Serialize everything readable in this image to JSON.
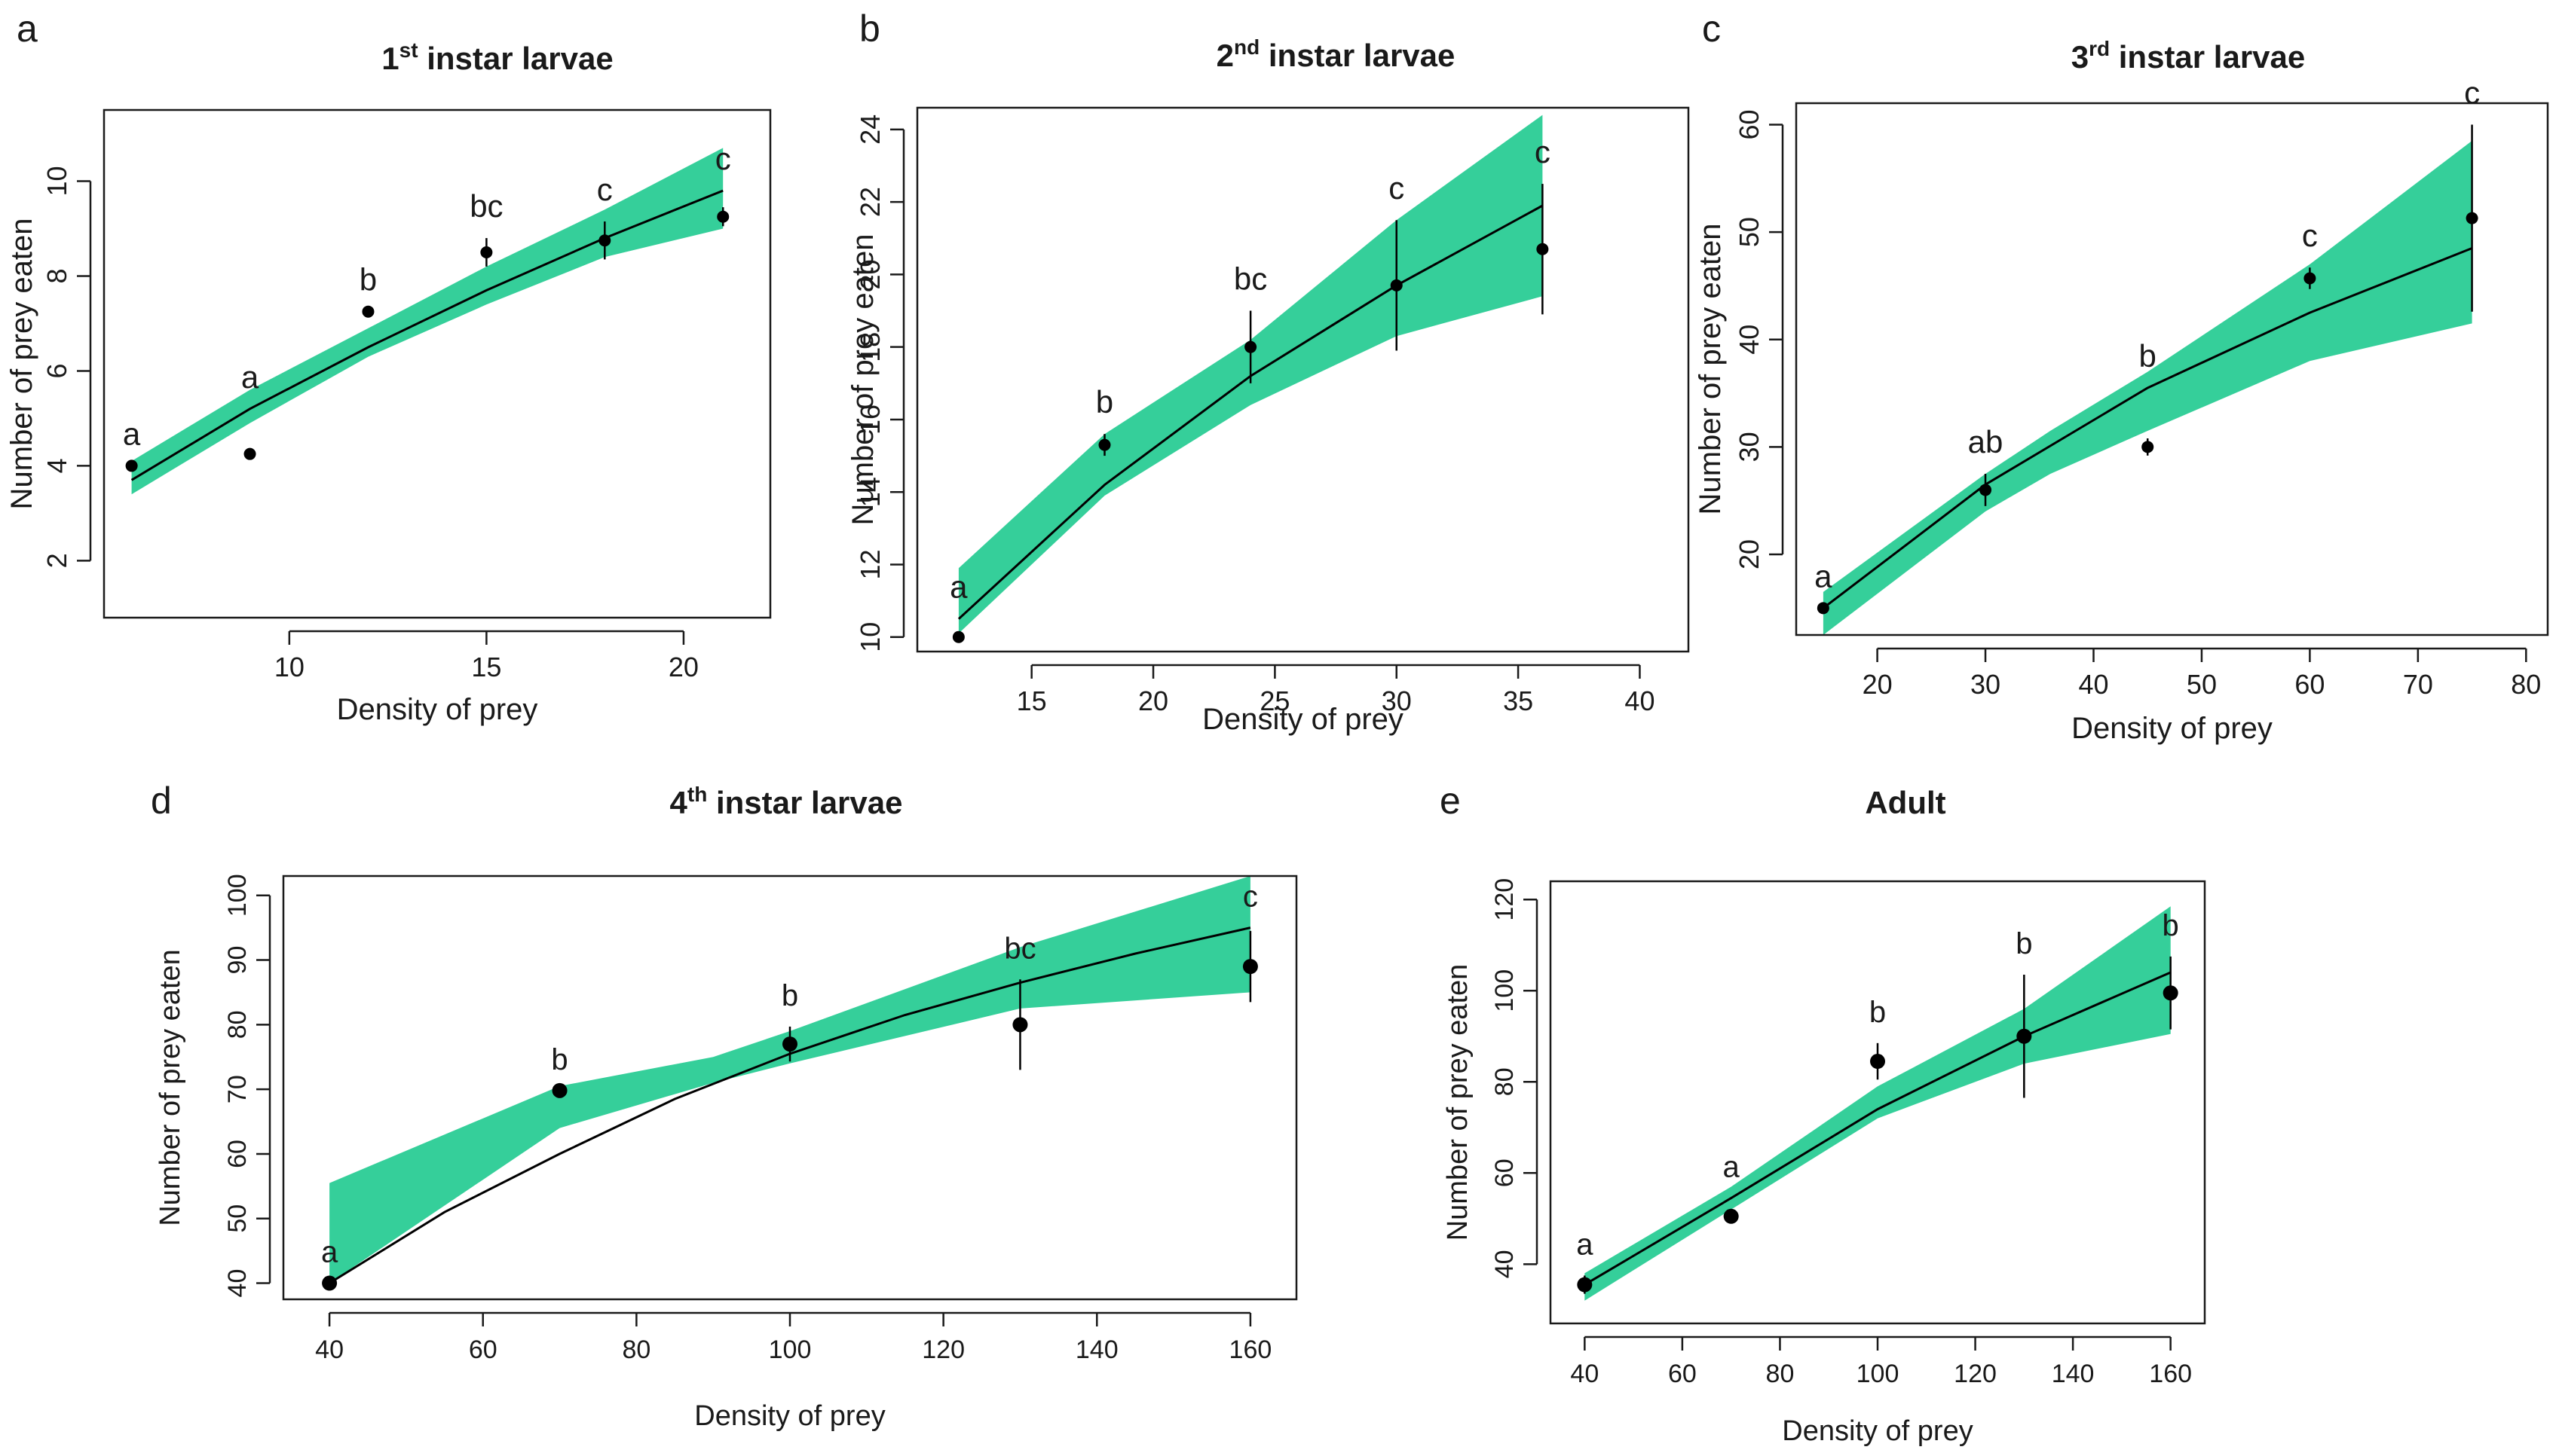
{
  "colors": {
    "band": "#35cf9a",
    "line": "#000000",
    "axis": "#1a1a1a"
  },
  "chart_data": [
    {
      "panel_letter": "a",
      "type": "line",
      "title_main": "1",
      "title_sup": "st",
      "title_rest": " instar larvae",
      "xlabel": "Density of  prey",
      "ylabel": "Number of prey eaten",
      "xlim": [
        5.3,
        22.2
      ],
      "ylim": [
        0.8,
        11.5
      ],
      "xticks": [
        10,
        15,
        20
      ],
      "xtick_labels": [
        "10",
        "15",
        "20"
      ],
      "yticks": [
        2,
        4,
        6,
        8,
        10
      ],
      "ytick_labels": [
        "2",
        "4",
        "6",
        "8",
        "10"
      ],
      "band_x": [
        6,
        9,
        12,
        15,
        18,
        21
      ],
      "band_lower": [
        3.4,
        4.9,
        6.3,
        7.4,
        8.4,
        9.0
      ],
      "band_upper": [
        4.1,
        5.6,
        6.9,
        8.2,
        9.4,
        10.7
      ],
      "fit_x": [
        6,
        9,
        12,
        15,
        18,
        21
      ],
      "fit_y": [
        3.7,
        5.2,
        6.5,
        7.7,
        8.8,
        9.8
      ],
      "points": [
        {
          "x": 6,
          "y": 4.0,
          "err": 0,
          "letter": "a"
        },
        {
          "x": 9,
          "y": 4.25,
          "err": 0,
          "letter": "a"
        },
        {
          "x": 12,
          "y": 7.25,
          "err": 0,
          "letter": "b"
        },
        {
          "x": 15,
          "y": 8.5,
          "err": 0.3,
          "letter": "bc"
        },
        {
          "x": 18,
          "y": 8.75,
          "err": 0.4,
          "letter": "c"
        },
        {
          "x": 21,
          "y": 9.25,
          "err": 0.2,
          "letter": "c"
        }
      ]
    },
    {
      "panel_letter": "b",
      "type": "line",
      "title_main": "2",
      "title_sup": "nd",
      "title_rest": " instar larvae",
      "xlabel": "Density of prey",
      "ylabel": "Number of prey eaten",
      "xlim": [
        10.3,
        42.0
      ],
      "ylim": [
        9.6,
        24.6
      ],
      "xticks": [
        15,
        20,
        25,
        30,
        35,
        40
      ],
      "xtick_labels": [
        "15",
        "20",
        "25",
        "30",
        "35",
        "40"
      ],
      "yticks": [
        10,
        12,
        14,
        16,
        18,
        20,
        22,
        24
      ],
      "ytick_labels": [
        "10",
        "12",
        "14",
        "16",
        "18",
        "20",
        "22",
        "24"
      ],
      "band_x": [
        12,
        18,
        24,
        30,
        36
      ],
      "band_lower": [
        10.1,
        13.9,
        16.4,
        18.3,
        19.4
      ],
      "band_upper": [
        11.9,
        15.6,
        18.2,
        21.5,
        24.4
      ],
      "fit_x": [
        12,
        18,
        24,
        30,
        36
      ],
      "fit_y": [
        10.5,
        14.2,
        17.2,
        19.7,
        21.9
      ],
      "points": [
        {
          "x": 12,
          "y": 10.0,
          "err": 0,
          "letter": "a"
        },
        {
          "x": 18,
          "y": 15.3,
          "err": 0.3,
          "letter": "b"
        },
        {
          "x": 24,
          "y": 18.0,
          "err": 1.0,
          "letter": "bc"
        },
        {
          "x": 30,
          "y": 19.7,
          "err": 1.8,
          "letter": "c"
        },
        {
          "x": 36,
          "y": 20.7,
          "err": 1.8,
          "letter": "c"
        }
      ]
    },
    {
      "panel_letter": "c",
      "type": "line",
      "title_main": "3",
      "title_sup": "rd",
      "title_rest": " instar larvae",
      "xlabel": "Density of prey",
      "ylabel": "Number of prey eaten",
      "xlim": [
        12.5,
        82.0
      ],
      "ylim": [
        12.5,
        62.0
      ],
      "xticks": [
        20,
        30,
        40,
        50,
        60,
        70,
        80
      ],
      "xtick_labels": [
        "20",
        "30",
        "40",
        "50",
        "60",
        "70",
        "80"
      ],
      "yticks": [
        20,
        30,
        40,
        50,
        60
      ],
      "ytick_labels": [
        "20",
        "30",
        "40",
        "50",
        "60"
      ],
      "band_x": [
        15,
        30,
        36,
        45,
        60,
        75
      ],
      "band_lower": [
        12.5,
        24.0,
        27.5,
        31.5,
        38.0,
        41.5
      ],
      "band_upper": [
        16.5,
        27.5,
        31.5,
        37.0,
        47.0,
        58.5
      ],
      "fit_x": [
        15,
        30,
        45,
        60,
        75
      ],
      "fit_y": [
        15.0,
        26.5,
        35.5,
        42.5,
        48.5
      ],
      "points": [
        {
          "x": 15,
          "y": 15.0,
          "err": 0,
          "letter": "a"
        },
        {
          "x": 30,
          "y": 26.0,
          "err": 1.5,
          "letter": "ab"
        },
        {
          "x": 45,
          "y": 30.0,
          "err": 0.8,
          "letter": "b"
        },
        {
          "x": 60,
          "y": 45.7,
          "err": 1.0,
          "letter": "c"
        },
        {
          "x": 75,
          "y": 51.3,
          "err": 8.7,
          "letter": "c"
        }
      ]
    },
    {
      "panel_letter": "d",
      "type": "line",
      "title_main": "4",
      "title_sup": "th",
      "title_rest": " instar larvae",
      "xlabel": "Density of prey",
      "ylabel": "Number of prey eaten",
      "xlim": [
        34.0,
        166.0
      ],
      "ylim": [
        37.5,
        103.0
      ],
      "xticks": [
        40,
        60,
        80,
        100,
        120,
        140,
        160
      ],
      "xtick_labels": [
        "40",
        "60",
        "80",
        "100",
        "120",
        "140",
        "160"
      ],
      "yticks": [
        40,
        50,
        60,
        70,
        80,
        90,
        100
      ],
      "ytick_labels": [
        "40",
        "50",
        "60",
        "70",
        "80",
        "90",
        "100"
      ],
      "band_x": [
        40,
        70,
        90,
        100,
        130,
        160
      ],
      "band_lower": [
        40.0,
        64.0,
        71.0,
        74.0,
        82.5,
        85.0
      ],
      "band_upper": [
        55.5,
        70.5,
        75.0,
        79.0,
        92.0,
        103.0
      ],
      "fit_x": [
        40,
        55,
        70,
        85,
        100,
        115,
        130,
        145,
        160
      ],
      "fit_y": [
        40.0,
        51.0,
        60.0,
        68.5,
        75.5,
        81.5,
        86.5,
        91.0,
        95.0
      ],
      "points": [
        {
          "x": 40,
          "y": 40.0,
          "err": 0,
          "letter": "a"
        },
        {
          "x": 70,
          "y": 69.8,
          "err": 0,
          "letter": "b"
        },
        {
          "x": 100,
          "y": 77.0,
          "err": 2.7,
          "letter": "b"
        },
        {
          "x": 130,
          "y": 80.0,
          "err": 7.0,
          "letter": "bc"
        },
        {
          "x": 160,
          "y": 89.0,
          "err": 5.5,
          "letter": "c"
        }
      ]
    },
    {
      "panel_letter": "e",
      "type": "line",
      "title_main": "Adult",
      "title_sup": "",
      "title_rest": "",
      "xlabel": "Density of prey",
      "ylabel": "Number of prey eaten",
      "xlim": [
        33.0,
        167.0
      ],
      "ylim": [
        27.0,
        124.0
      ],
      "xticks": [
        40,
        60,
        80,
        100,
        120,
        140,
        160
      ],
      "xtick_labels": [
        "40",
        "60",
        "80",
        "100",
        "120",
        "140",
        "160"
      ],
      "yticks": [
        40,
        60,
        80,
        100,
        120
      ],
      "ytick_labels": [
        "40",
        "60",
        "80",
        "100",
        "120"
      ],
      "band_x": [
        40,
        70,
        100,
        130,
        160
      ],
      "band_lower": [
        32.0,
        52.0,
        72.0,
        84.0,
        90.5
      ],
      "band_upper": [
        38.0,
        57.0,
        79.0,
        96.0,
        118.5
      ],
      "fit_x": [
        40,
        70,
        100,
        130,
        160
      ],
      "fit_y": [
        35.5,
        54.5,
        74.0,
        90.0,
        104.0
      ],
      "points": [
        {
          "x": 40,
          "y": 35.5,
          "err": 2.0,
          "letter": "a"
        },
        {
          "x": 70,
          "y": 50.5,
          "err": 1.5,
          "letter": "a"
        },
        {
          "x": 100,
          "y": 84.5,
          "err": 4.0,
          "letter": "b"
        },
        {
          "x": 130,
          "y": 90.0,
          "err": 13.5,
          "letter": "b"
        },
        {
          "x": 160,
          "y": 99.5,
          "err": 8.0,
          "letter": "b"
        }
      ]
    }
  ]
}
